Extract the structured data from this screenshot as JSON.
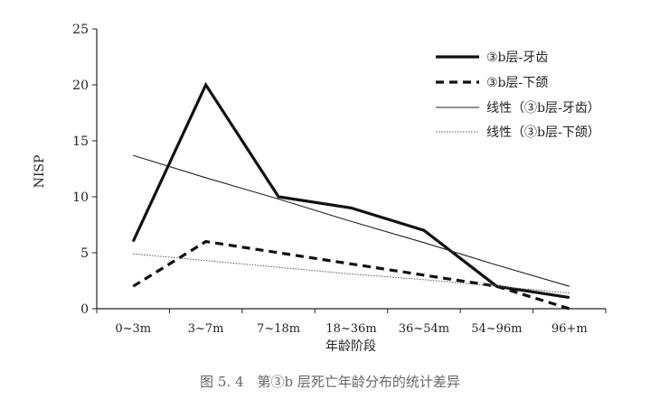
{
  "chart_data": {
    "type": "line",
    "categories": [
      "0~3m",
      "3~7m",
      "7~18m",
      "18~36m",
      "36~54m",
      "54~96m",
      "96+m"
    ],
    "xlabel": "年龄阶段",
    "ylabel": "NISP",
    "ylim": [
      0,
      25
    ],
    "yticks": [
      0,
      5,
      10,
      15,
      20,
      25
    ],
    "grid": false,
    "legend_position": "top-right",
    "series": [
      {
        "name": "③b层-牙齿",
        "values": [
          6,
          20,
          10,
          9,
          7,
          2,
          1
        ],
        "style": "thick-solid",
        "color": "#111111"
      },
      {
        "name": "③b层-下颌",
        "values": [
          2,
          6,
          5,
          4,
          3,
          2,
          0
        ],
        "style": "thick-dashed",
        "color": "#111111"
      },
      {
        "name": "线性（③b层-牙齿）",
        "values": [
          13.7,
          11.7,
          9.8,
          7.8,
          5.9,
          3.9,
          2.0
        ],
        "style": "thin-solid",
        "color": "#222222"
      },
      {
        "name": "线性（③b层-下颌）",
        "values": [
          4.9,
          4.3,
          3.7,
          3.1,
          2.6,
          2.0,
          1.4
        ],
        "style": "thin-dotted",
        "color": "#555555"
      }
    ]
  },
  "caption": "图 5. 4　第③b 层死亡年龄分布的统计差异"
}
